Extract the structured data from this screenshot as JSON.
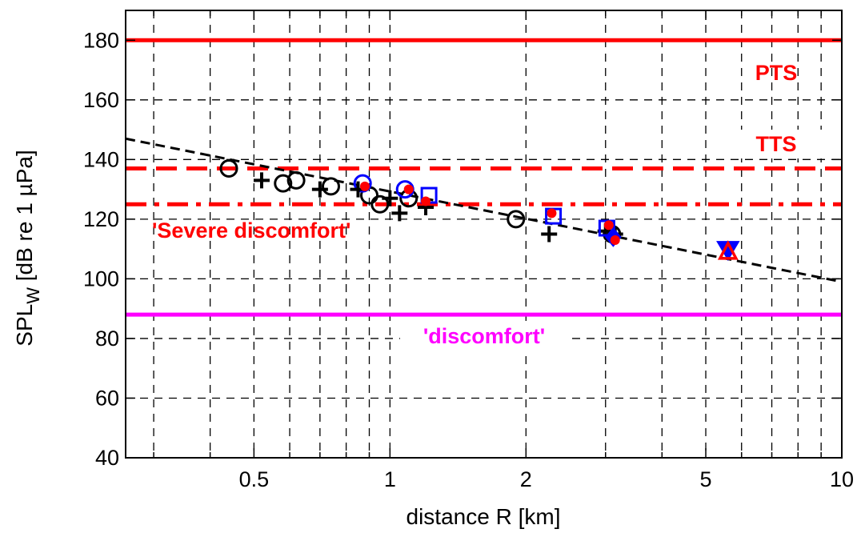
{
  "chart_data": {
    "type": "scatter",
    "title": "",
    "xlabel": "distance R [km]",
    "ylabel_main": "SPL",
    "ylabel_sub": "W",
    "ylabel_rest": " [dB re 1 µPa]",
    "x_scale": "log",
    "xlim": [
      0.26,
      10
    ],
    "ylim": [
      40,
      190
    ],
    "x_ticks": [
      0.5,
      1,
      2,
      5,
      10
    ],
    "x_tick_labels": [
      "0.5",
      "1",
      "2",
      "5",
      "10"
    ],
    "y_ticks": [
      40,
      60,
      80,
      100,
      120,
      140,
      160,
      180
    ],
    "y_tick_labels": [
      "40",
      "60",
      "80",
      "100",
      "120",
      "140",
      "160",
      "180"
    ],
    "grid": true,
    "thresholds": [
      {
        "label": "PTS",
        "y": 180,
        "style": "solid",
        "color": "#ff0000"
      },
      {
        "label": "TTS",
        "y": 137,
        "style": "dashed",
        "color": "#ff0000"
      },
      {
        "label": "'Severe discomfort'",
        "y": 125,
        "style": "dashdot",
        "color": "#ff0000"
      },
      {
        "label": "'discomfort'",
        "y": 88,
        "style": "solid",
        "color": "#ff00ff"
      }
    ],
    "fit_line": {
      "style": "dashed",
      "color": "#000000",
      "points": [
        [
          0.26,
          147
        ],
        [
          10,
          99
        ]
      ]
    },
    "series": [
      {
        "marker": "circle",
        "color": "#000000",
        "points": [
          [
            0.44,
            137
          ],
          [
            0.58,
            132
          ],
          [
            0.62,
            133
          ],
          [
            0.74,
            131
          ],
          [
            0.9,
            128
          ],
          [
            0.95,
            125
          ],
          [
            1.1,
            127
          ],
          [
            1.9,
            120
          ],
          [
            3.1,
            115
          ]
        ]
      },
      {
        "marker": "plus",
        "color": "#000000",
        "points": [
          [
            0.52,
            133
          ],
          [
            0.7,
            130
          ],
          [
            0.85,
            130
          ],
          [
            1.0,
            127
          ],
          [
            1.05,
            122
          ],
          [
            1.2,
            124
          ],
          [
            2.25,
            115
          ],
          [
            3.0,
            116
          ],
          [
            3.15,
            115
          ]
        ]
      },
      {
        "marker": "circle",
        "color": "#0000ff",
        "points": [
          [
            0.87,
            132
          ],
          [
            1.08,
            130
          ]
        ]
      },
      {
        "marker": "square",
        "color": "#0000ff",
        "points": [
          [
            1.22,
            128
          ],
          [
            2.3,
            121
          ],
          [
            3.02,
            117
          ]
        ]
      },
      {
        "marker": "dot",
        "color": "#ff0000",
        "points": [
          [
            0.88,
            131
          ],
          [
            1.1,
            130
          ],
          [
            1.2,
            126
          ],
          [
            2.28,
            122
          ],
          [
            3.05,
            118
          ],
          [
            3.15,
            113
          ]
        ]
      },
      {
        "marker": "diamond",
        "color": "#0000ff",
        "points": [
          [
            3.12,
            114
          ]
        ]
      },
      {
        "marker": "triangle-down",
        "color": "#0000ff",
        "points": [
          [
            5.6,
            110
          ]
        ]
      },
      {
        "marker": "triangle-up",
        "color": "#ff0000",
        "points": [
          [
            5.6,
            109
          ]
        ]
      }
    ],
    "colors": {
      "red": "#ff0000",
      "magenta": "#ff00ff",
      "blue": "#0000ff",
      "black": "#000000"
    }
  }
}
